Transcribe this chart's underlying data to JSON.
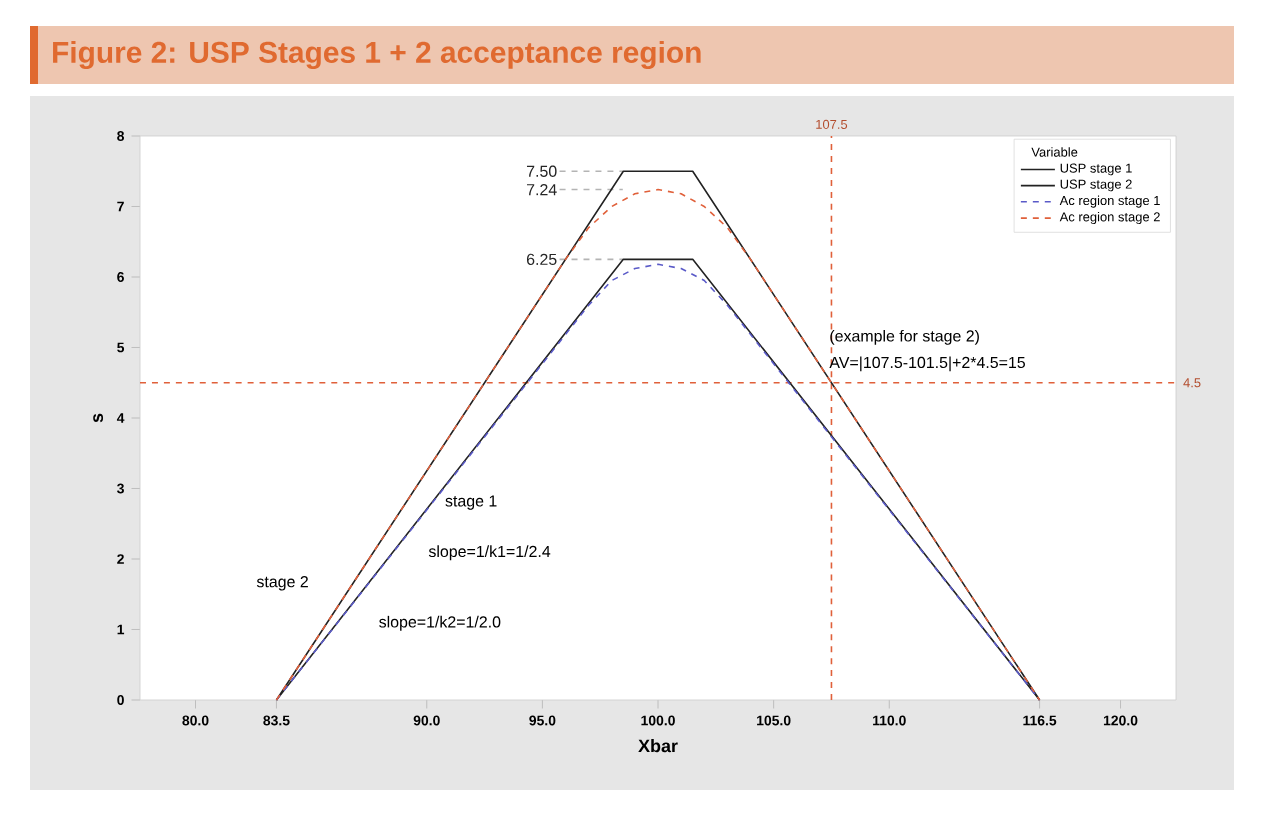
{
  "chart_data": {
    "type": "line",
    "title": "Figure 2: USP Stages 1 + 2 acceptance region",
    "xlabel": "Xbar",
    "ylabel": "s",
    "legend_title": "Variable",
    "legend": "top right",
    "grid": false,
    "xlim": [
      77.6,
      122.4
    ],
    "ylim": [
      0,
      8
    ],
    "xticks": [
      {
        "value": 80,
        "label": "80.0"
      },
      {
        "value": 83.5,
        "label": "83.5"
      },
      {
        "value": 90,
        "label": "90.0"
      },
      {
        "value": 95,
        "label": "95.0"
      },
      {
        "value": 100,
        "label": "100.0"
      },
      {
        "value": 105,
        "label": "105.0"
      },
      {
        "value": 110,
        "label": "110.0"
      },
      {
        "value": 116.5,
        "label": "116.5"
      },
      {
        "value": 120,
        "label": "120.0"
      }
    ],
    "yticks": [
      0,
      1,
      2,
      3,
      4,
      5,
      6,
      7,
      8
    ],
    "series": [
      {
        "name": "USP stage 1",
        "color": "#222222",
        "line_style": "solid",
        "x": [
          83.5,
          98.5,
          101.5,
          116.5
        ],
        "values": [
          0,
          6.25,
          6.25,
          0
        ]
      },
      {
        "name": "USP stage 2",
        "color": "#222222",
        "line_style": "solid",
        "x": [
          83.5,
          98.5,
          101.5,
          116.5
        ],
        "values": [
          0,
          7.5,
          7.5,
          0
        ]
      },
      {
        "name": "Ac region stage 1",
        "color": "#5a5ac8",
        "line_style": "dashed",
        "x": [
          83.5,
          97,
          98,
          99,
          100,
          101,
          102,
          103,
          116.5
        ],
        "values": [
          0,
          5.6,
          5.95,
          6.12,
          6.18,
          6.12,
          5.95,
          5.6,
          0
        ]
      },
      {
        "name": "Ac region stage 2",
        "color": "#e0603a",
        "line_style": "dashed",
        "x": [
          83.5,
          96,
          97,
          98,
          99,
          100,
          101,
          102,
          103,
          104,
          116.5
        ],
        "values": [
          0,
          6.25,
          6.7,
          7.0,
          7.18,
          7.24,
          7.18,
          7.0,
          6.7,
          6.25,
          0
        ]
      }
    ],
    "ref_lines": [
      {
        "axis": "x",
        "value": 107.5,
        "label": "107.5",
        "color": "#e0603a",
        "line_style": "dashed"
      },
      {
        "axis": "y",
        "value": 4.5,
        "label": "4.5",
        "color": "#e0603a",
        "line_style": "dashed"
      },
      {
        "axis": "y",
        "value": 7.5,
        "label": "7.50",
        "color": "#b4b4b4",
        "line_style": "dashed"
      },
      {
        "axis": "y",
        "value": 7.24,
        "label": "7.24",
        "color": "#b4b4b4",
        "line_style": "dashed"
      },
      {
        "axis": "y",
        "value": 6.25,
        "label": "6.25",
        "color": "#b4b4b4",
        "line_style": "dashed"
      }
    ],
    "annotations": [
      "(example for stage 2)",
      "AV=|107.5-101.5|+2*4.5=15",
      "stage 1",
      "slope=1/k1=1/2.4",
      "stage 2",
      "slope=1/k2=1/2.0"
    ]
  }
}
